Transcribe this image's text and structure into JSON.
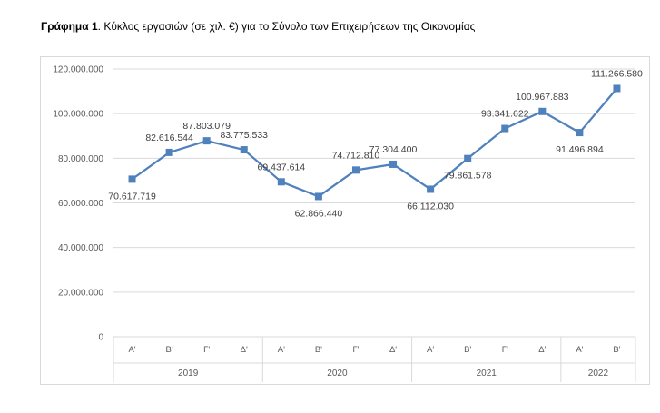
{
  "caption": {
    "bold": "Γράφημα 1",
    "text": ". Κύκλος εργασιών (σε χιλ. €) για το Σύνολο των Επιχειρήσεων της Οικονομίας"
  },
  "chart_data": {
    "type": "line",
    "title": "",
    "xlabel": "",
    "ylabel": "",
    "ylim": [
      0,
      120000000
    ],
    "yticks": [
      0,
      20000000,
      40000000,
      60000000,
      80000000,
      100000000,
      120000000
    ],
    "ytick_labels": [
      "0",
      "20.000.000",
      "40.000.000",
      "60.000.000",
      "80.000.000",
      "100.000.000",
      "120.000.000"
    ],
    "grid": true,
    "legend": "none",
    "series_color": "#4f81bd",
    "categories": [
      "Α'",
      "Β'",
      "Γ'",
      "Δ'",
      "Α'",
      "Β'",
      "Γ'",
      "Δ'",
      "Α'",
      "Β'",
      "Γ'",
      "Δ'",
      "Α'",
      "Β'"
    ],
    "groups": [
      {
        "label": "2019",
        "count": 4
      },
      {
        "label": "2020",
        "count": 4
      },
      {
        "label": "2021",
        "count": 4
      },
      {
        "label": "2022",
        "count": 2
      }
    ],
    "values": [
      70617719,
      82616544,
      87803079,
      83775533,
      69437614,
      62866440,
      74712810,
      77304400,
      66112030,
      79861578,
      93341622,
      100967883,
      91496894,
      111266580
    ],
    "value_labels": [
      "70.617.719",
      "82.616.544",
      "87.803.079",
      "83.775.533",
      "69.437.614",
      "62.866.440",
      "74.712.810",
      "77.304.400",
      "66.112.030",
      "79.861.578",
      "93.341.622",
      "100.967.883",
      "91.496.894",
      "111.266.580"
    ],
    "label_positions": [
      "below",
      "above",
      "above",
      "above",
      "above",
      "below",
      "above",
      "above",
      "below",
      "below",
      "above",
      "above",
      "below",
      "above"
    ]
  }
}
